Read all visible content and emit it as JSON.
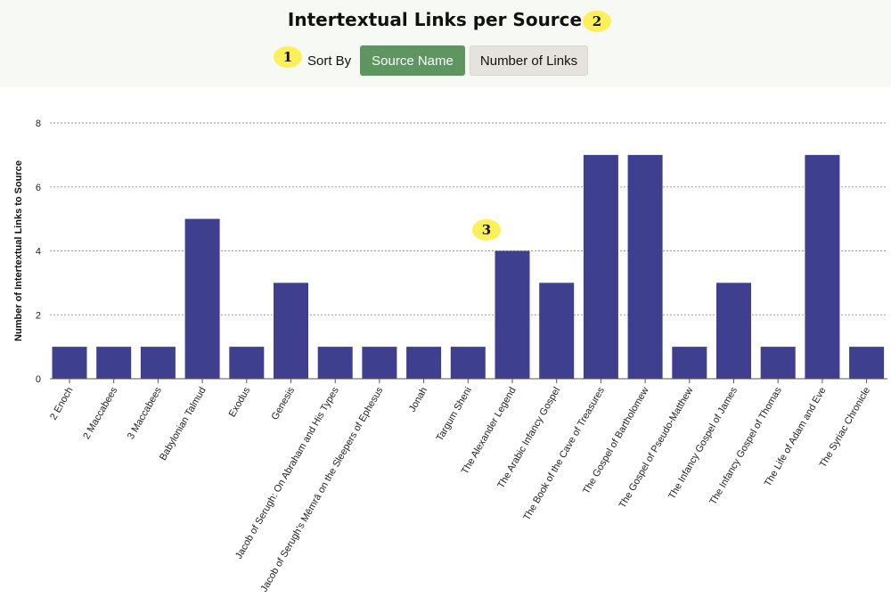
{
  "header": {
    "title": "Intertextual Links per Source",
    "table_icon": "table-grid-icon",
    "badges": [
      "1",
      "2",
      "3"
    ],
    "sort_label": "Sort By",
    "sort_buttons": [
      {
        "label": "Source Name",
        "active": true
      },
      {
        "label": "Number of Links",
        "active": false
      }
    ]
  },
  "colors": {
    "bar": "#3e3f8f",
    "active_button": "#5e9560",
    "inactive_button": "#e6e3dd",
    "badge": "#fbef5a",
    "header_bg": "#f7f9f4"
  },
  "chart_data": {
    "type": "bar",
    "title": "",
    "xlabel": "",
    "ylabel": "Number of Intertextual Links to Source",
    "ylim": [
      0,
      8
    ],
    "yticks": [
      0,
      2,
      4,
      6,
      8
    ],
    "grid": "horizontal dotted",
    "categories": [
      "2 Enoch",
      "2 Maccabees",
      "3 Maccabees",
      "Babylonian Talmud",
      "Exodus",
      "Genesis",
      "Jacob of Serugh: On Abraham and His Types",
      "Jacob of Serugh's Mēmrā on the Sleepers of Ephesus",
      "Jonah",
      "Targum Sheni",
      "The Alexander Legend",
      "The Arabic Infancy Gospel",
      "The Book of the Cave of Treasures",
      "The Gospel of Bartholomew",
      "The Gospel of Pseudo-Matthew",
      "The Infancy Gospel of James",
      "The Infancy Gospel of Thomas",
      "The Life of Adam and Eve",
      "The Syriac Chronicle"
    ],
    "values": [
      1,
      1,
      1,
      5,
      1,
      3,
      1,
      1,
      1,
      1,
      4,
      3,
      7,
      7,
      1,
      3,
      1,
      7,
      1
    ]
  }
}
